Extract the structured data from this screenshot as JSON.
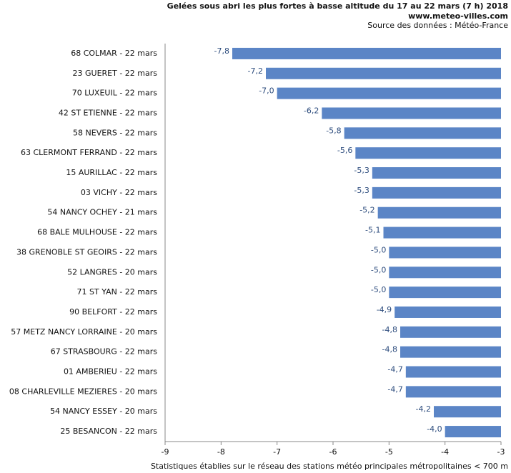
{
  "chart_data": {
    "type": "hbar",
    "title": "Gelées sous abri les plus fortes à basse altitude du 17 au 22 mars (7 h) 2018",
    "subtitle": "www.meteo-villes.com",
    "source": "Source des données : Météo-France",
    "footnote": "Statistiques établies sur le réseau des stations météo principales métropolitaines < 700 m",
    "categories": [
      "68 COLMAR - 22 mars",
      "23 GUERET - 22 mars",
      "70 LUXEUIL - 22 mars",
      "42 ST ETIENNE - 22 mars",
      "58 NEVERS - 22 mars",
      "63 CLERMONT FERRAND - 22 mars",
      "15 AURILLAC - 22 mars",
      "03 VICHY - 22 mars",
      "54 NANCY OCHEY - 21 mars",
      "68 BALE MULHOUSE - 22 mars",
      "38 GRENOBLE ST GEOIRS - 22 mars",
      "52 LANGRES - 20 mars",
      "71 ST YAN - 22 mars",
      "90 BELFORT - 22 mars",
      "57 METZ NANCY LORRAINE - 20 mars",
      "67 STRASBOURG - 22 mars",
      "01 AMBERIEU - 22 mars",
      "08 CHARLEVILLE MEZIERES - 20 mars",
      "54 NANCY ESSEY - 20 mars",
      "25 BESANCON - 22 mars"
    ],
    "values": [
      -7.8,
      -7.2,
      -7.0,
      -6.2,
      -5.8,
      -5.6,
      -5.3,
      -5.3,
      -5.2,
      -5.1,
      -5.0,
      -5.0,
      -5.0,
      -4.9,
      -4.8,
      -4.8,
      -4.7,
      -4.7,
      -4.2,
      -4.0
    ],
    "value_labels": [
      "-7,8",
      "-7,2",
      "-7,0",
      "-6,2",
      "-5,8",
      "-5,6",
      "-5,3",
      "-5,3",
      "-5,2",
      "-5,1",
      "-5,0",
      "-5,0",
      "-5,0",
      "-4,9",
      "-4,8",
      "-4,8",
      "-4,7",
      "-4,7",
      "-4,2",
      "-4,0"
    ],
    "color": "#5b85c6",
    "xlim": [
      -9,
      -3
    ],
    "xticks": [
      -9,
      -8,
      -7,
      -6,
      -5,
      -4,
      -3
    ]
  }
}
